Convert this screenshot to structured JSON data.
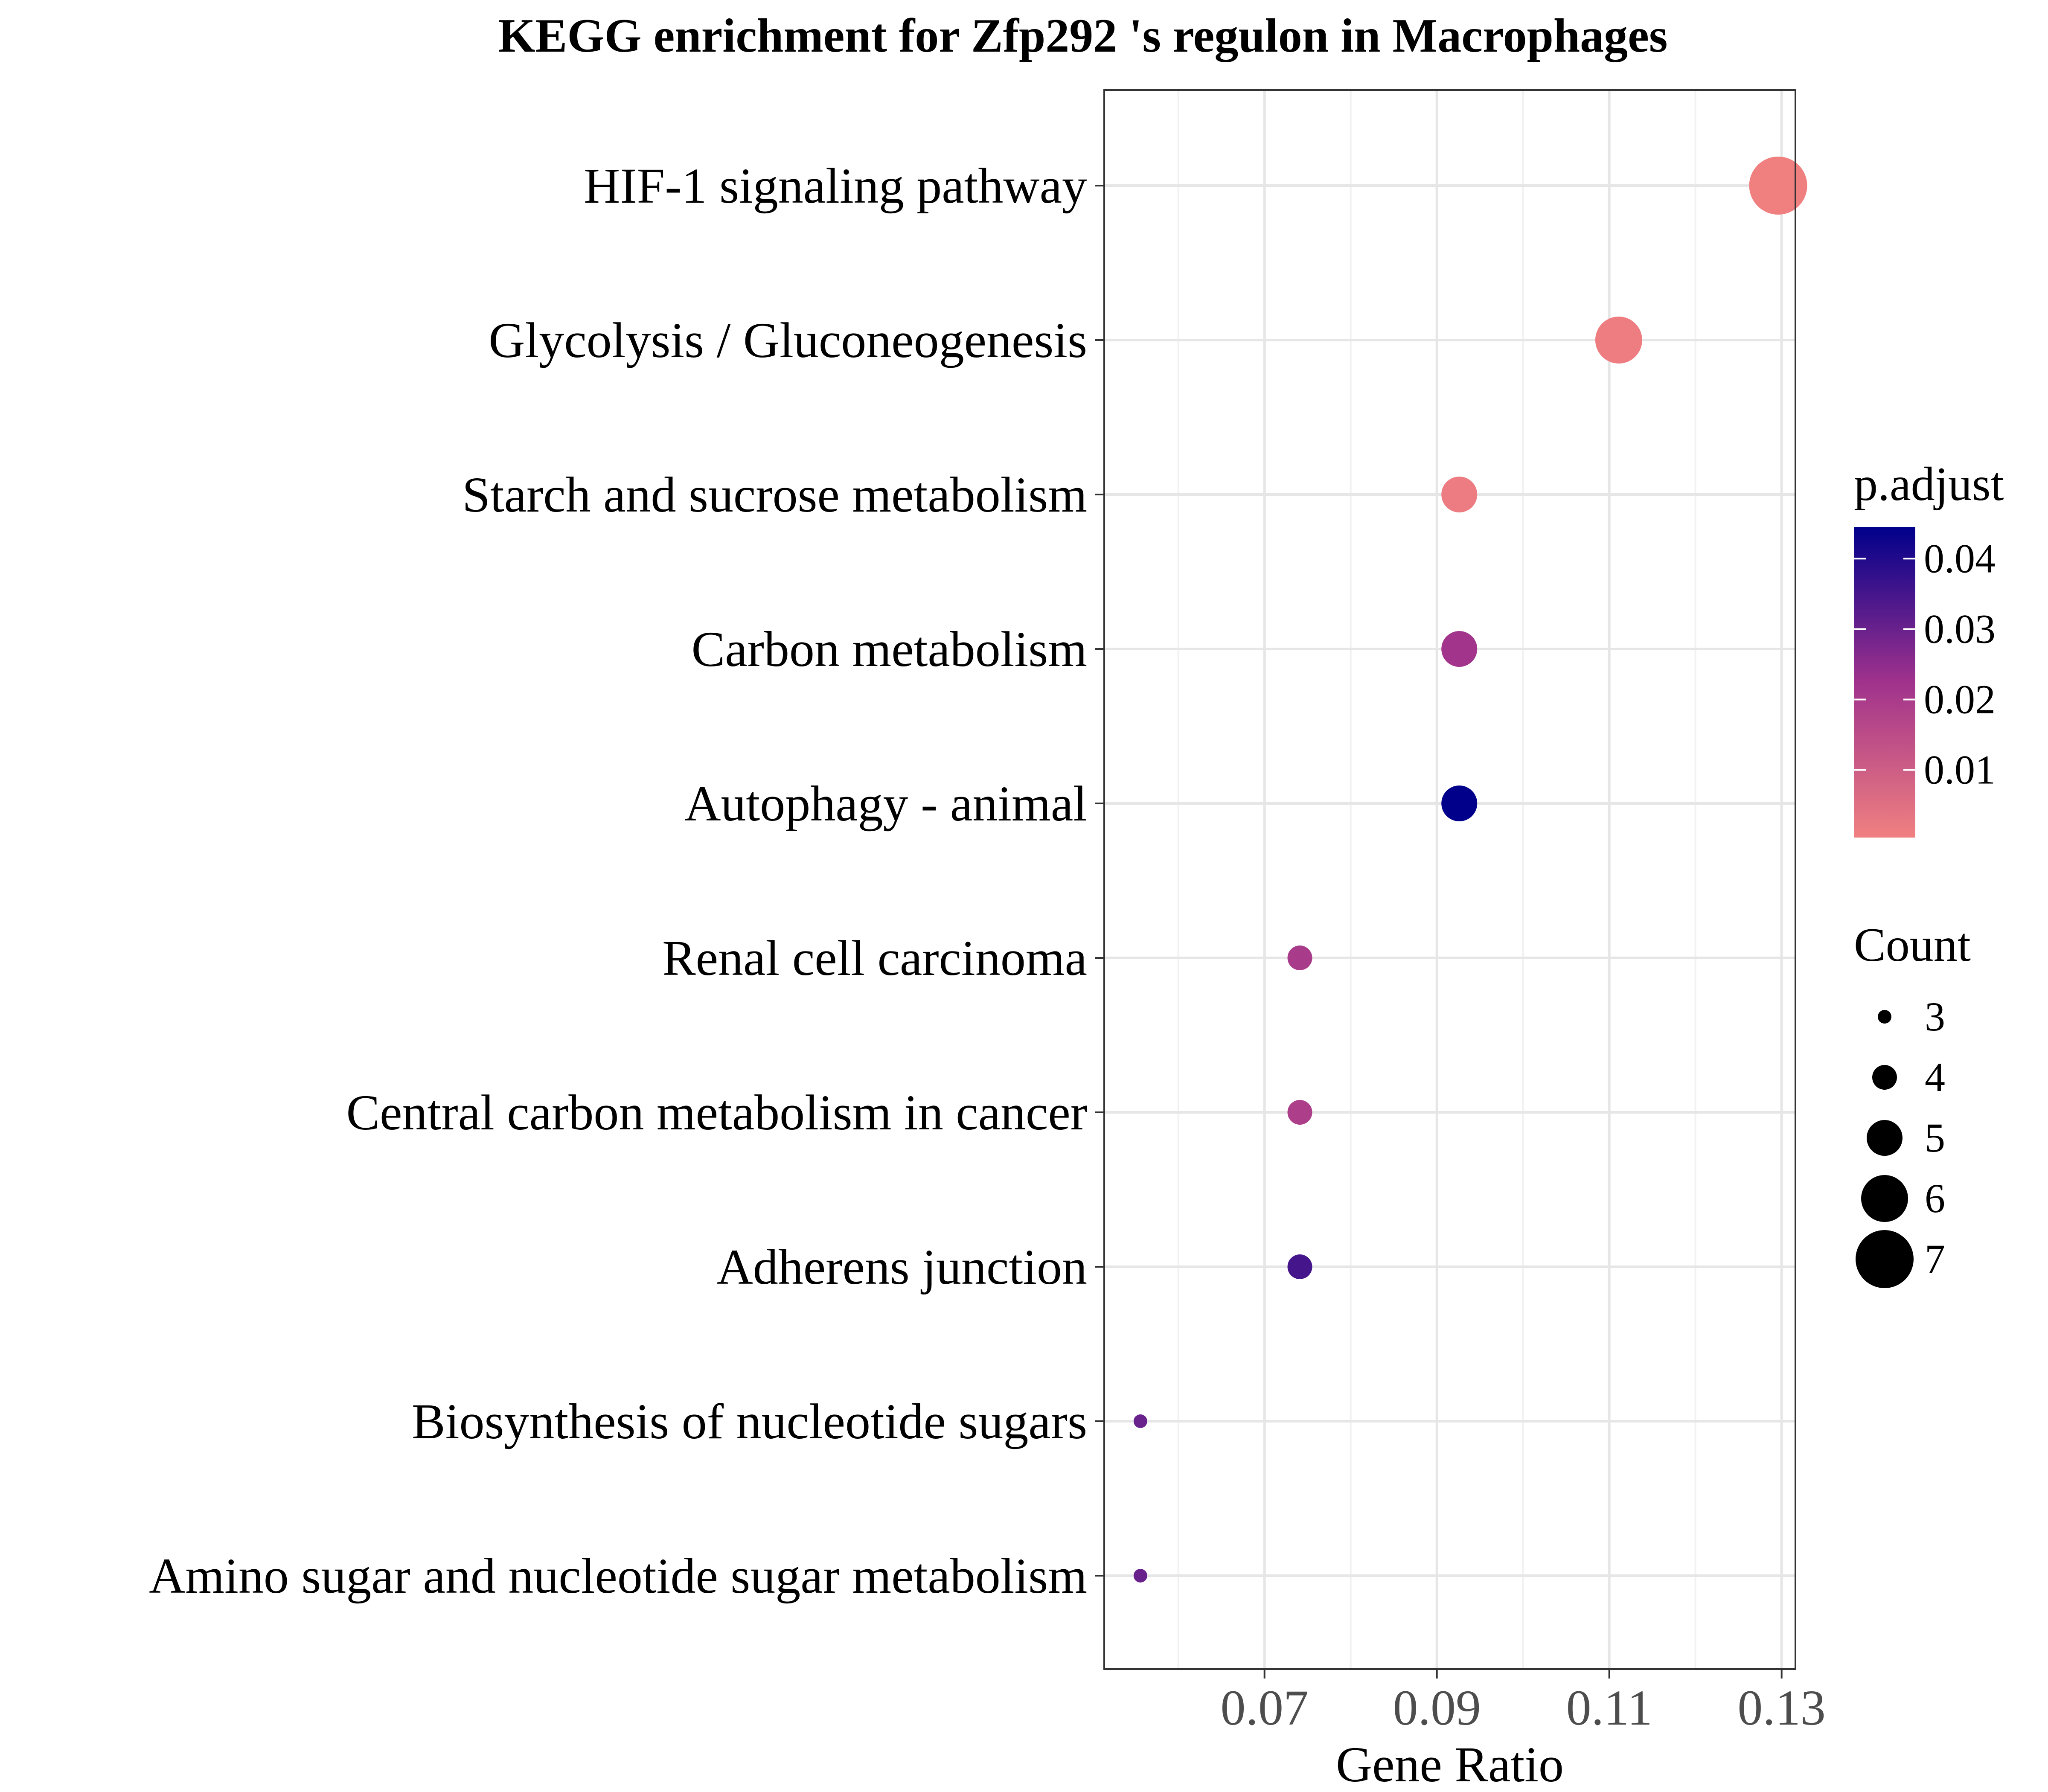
{
  "chart_data": {
    "type": "scatter",
    "title": "KEGG enrichment for Zfp292 's regulon in Macrophages",
    "xlabel": "Gene Ratio",
    "ylabel": "",
    "xlim": [
      0.0514,
      0.1316
    ],
    "x_ticks": [
      {
        "value": 0.07,
        "label": "0.07"
      },
      {
        "value": 0.09,
        "label": "0.09"
      },
      {
        "value": 0.11,
        "label": "0.11"
      },
      {
        "value": 0.13,
        "label": "0.13"
      }
    ],
    "x_minor_ticks": [
      0.06,
      0.08,
      0.1,
      0.12
    ],
    "grid": true,
    "legend_position": "right",
    "categories": [
      "HIF-1 signaling pathway",
      "Glycolysis / Gluconeogenesis",
      "Starch and sucrose metabolism",
      "Carbon metabolism",
      "Autophagy - animal",
      "Renal cell carcinoma",
      "Central carbon metabolism in cancer",
      "Adherens junction",
      "Biosynthesis of nucleotide sugars",
      "Amino sugar and nucleotide sugar metabolism"
    ],
    "points": [
      {
        "term": "HIF-1 signaling pathway",
        "gene_ratio": 0.1296,
        "count": 7,
        "p_adjust": 0.0004
      },
      {
        "term": "Glycolysis / Gluconeogenesis",
        "gene_ratio": 0.1111,
        "count": 6,
        "p_adjust": 0.0012
      },
      {
        "term": "Starch and sucrose metabolism",
        "gene_ratio": 0.0926,
        "count": 5,
        "p_adjust": 0.0015
      },
      {
        "term": "Carbon metabolism",
        "gene_ratio": 0.0926,
        "count": 5,
        "p_adjust": 0.022
      },
      {
        "term": "Autophagy - animal",
        "gene_ratio": 0.0926,
        "count": 5,
        "p_adjust": 0.0445
      },
      {
        "term": "Renal cell carcinoma",
        "gene_ratio": 0.0741,
        "count": 4,
        "p_adjust": 0.02
      },
      {
        "term": "Central carbon metabolism in cancer",
        "gene_ratio": 0.0741,
        "count": 4,
        "p_adjust": 0.019
      },
      {
        "term": "Adherens junction",
        "gene_ratio": 0.0741,
        "count": 4,
        "p_adjust": 0.035
      },
      {
        "term": "Biosynthesis of nucleotide sugars",
        "gene_ratio": 0.0556,
        "count": 3,
        "p_adjust": 0.03
      },
      {
        "term": "Amino sugar and nucleotide sugar metabolism",
        "gene_ratio": 0.0556,
        "count": 3,
        "p_adjust": 0.03
      }
    ],
    "color_legend": {
      "title": "p.adjust",
      "min": 0.0004,
      "max": 0.0445,
      "low_color": "#f08080",
      "high_color": "#00008b",
      "ticks": [
        {
          "value": 0.01,
          "label": "0.01"
        },
        {
          "value": 0.02,
          "label": "0.02"
        },
        {
          "value": 0.03,
          "label": "0.03"
        },
        {
          "value": 0.04,
          "label": "0.04"
        }
      ]
    },
    "size_legend": {
      "title": "Count",
      "entries": [
        {
          "value": 3,
          "label": "3"
        },
        {
          "value": 4,
          "label": "4"
        },
        {
          "value": 5,
          "label": "5"
        },
        {
          "value": 6,
          "label": "6"
        },
        {
          "value": 7,
          "label": "7"
        }
      ]
    }
  }
}
